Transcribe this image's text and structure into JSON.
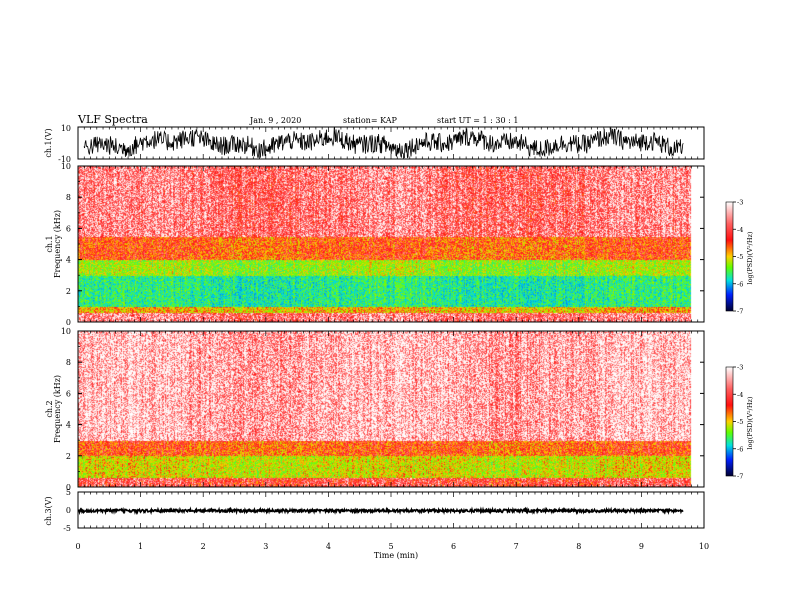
{
  "header": {
    "title": "VLF Spectra",
    "date": "Jan. 9 , 2020",
    "station": "station= KAP",
    "start": "start UT =  1 : 30 : 1"
  },
  "chart_data": [
    {
      "type": "line",
      "name": "ch1-waveform",
      "ylabel": "ch.1(V)",
      "ylim": [
        -10,
        10
      ],
      "yticks": [
        10,
        -10
      ],
      "xlim": [
        0,
        10
      ],
      "x_end": 9.8,
      "description_level": {
        "center": 0.5,
        "noise_amplitude": 6
      }
    },
    {
      "type": "heatmap",
      "name": "ch1-spectrogram",
      "ylabel": "ch.1 Frequency (kHz)",
      "ylim": [
        0,
        10
      ],
      "yticks": [
        0,
        2,
        4,
        6,
        8,
        10
      ],
      "xlim": [
        0,
        10
      ],
      "x_end": 9.8,
      "colorbar": {
        "label": "log(PSD)(V²/Hz)",
        "ticks": [
          "-3",
          "-4",
          "-5",
          "-6",
          "-7"
        ],
        "range": [
          -7,
          -3
        ]
      },
      "bands": [
        {
          "from_khz": 0.0,
          "to_khz": 0.6,
          "level": -3.4
        },
        {
          "from_khz": 0.6,
          "to_khz": 1.0,
          "level": -4.2
        },
        {
          "from_khz": 1.0,
          "to_khz": 3.0,
          "level": -5.1
        },
        {
          "from_khz": 3.0,
          "to_khz": 4.0,
          "level": -4.6
        },
        {
          "from_khz": 4.0,
          "to_khz": 5.5,
          "level": -3.9
        },
        {
          "from_khz": 5.5,
          "to_khz": 10.0,
          "level": -3.4
        }
      ]
    },
    {
      "type": "heatmap",
      "name": "ch2-spectrogram",
      "ylabel": "ch.2 Frequency (kHz)",
      "ylim": [
        0,
        10
      ],
      "yticks": [
        0,
        2,
        4,
        6,
        8,
        10
      ],
      "xlim": [
        0,
        10
      ],
      "x_end": 9.8,
      "colorbar": {
        "label": "log(PSD)(V²/Hz)",
        "ticks": [
          "-3",
          "-4",
          "-5",
          "-6",
          "-7"
        ],
        "range": [
          -7,
          -3
        ]
      },
      "bands": [
        {
          "from_khz": 0.0,
          "to_khz": 0.6,
          "level": -3.6
        },
        {
          "from_khz": 0.6,
          "to_khz": 2.0,
          "level": -4.4
        },
        {
          "from_khz": 2.0,
          "to_khz": 3.0,
          "level": -3.9
        },
        {
          "from_khz": 3.0,
          "to_khz": 10.0,
          "level": -3.2
        }
      ]
    },
    {
      "type": "line",
      "name": "ch3-waveform",
      "ylabel": "ch.3(V)",
      "ylim": [
        -5,
        5
      ],
      "yticks": [
        5,
        0,
        -5
      ],
      "xlim": [
        0,
        10
      ],
      "x_end": 9.8,
      "description_level": {
        "center": -0.2,
        "noise_amplitude": 0.4
      }
    }
  ],
  "x_axis": {
    "label": "Time (min)",
    "ticks": [
      "0",
      "1",
      "2",
      "3",
      "4",
      "5",
      "6",
      "7",
      "8",
      "9",
      "10"
    ]
  }
}
